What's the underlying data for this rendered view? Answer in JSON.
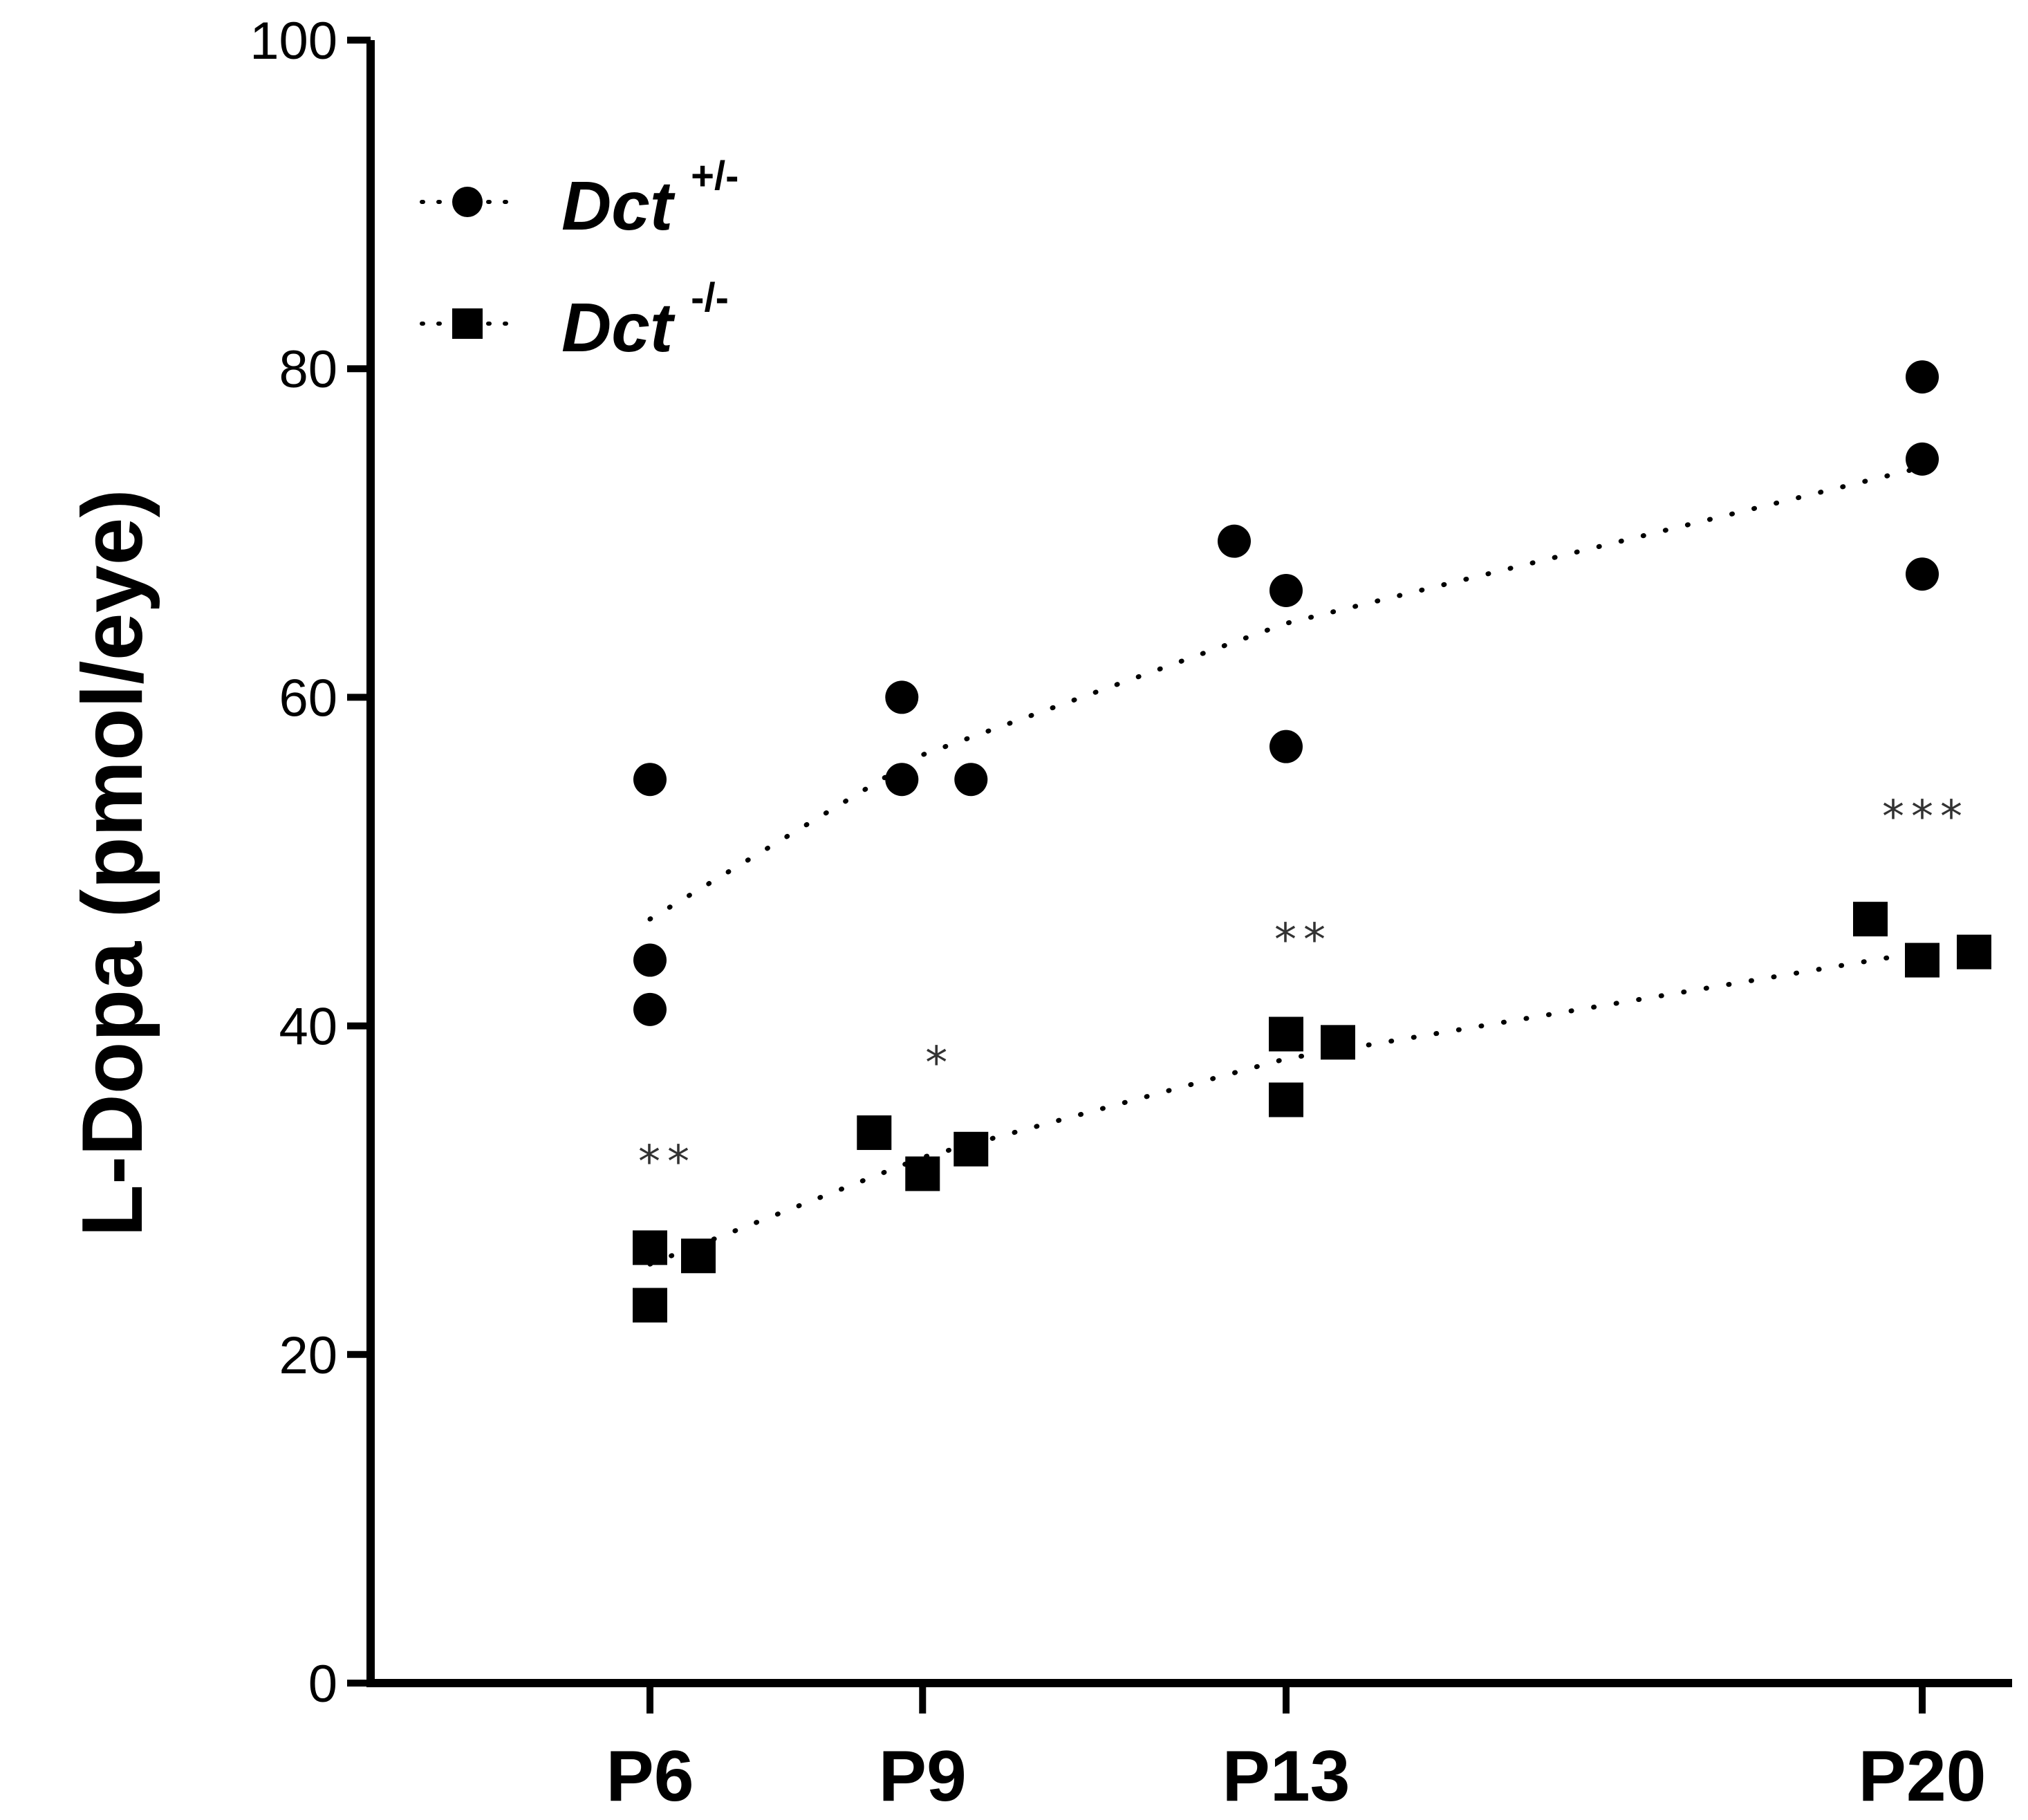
{
  "chart_data": {
    "type": "scatter",
    "ylabel": "L-Dopa (pmol/eye)",
    "xlabel": "",
    "ylim": [
      0,
      100
    ],
    "yticks": [
      0,
      20,
      40,
      60,
      80,
      100
    ],
    "categories": [
      "P6",
      "P9",
      "P13",
      "P20"
    ],
    "x_positions": [
      6,
      9,
      13,
      20
    ],
    "series": [
      {
        "name": "Dct",
        "genotype": "+/-",
        "marker": "circle",
        "points": [
          {
            "x": 6,
            "y": 55
          },
          {
            "x": 6,
            "y": 44
          },
          {
            "x": 6,
            "y": 41
          },
          {
            "x": 9,
            "y": 60
          },
          {
            "x": 9,
            "y": 55
          },
          {
            "x": 9,
            "y": 55
          },
          {
            "x": 13,
            "y": 69.5
          },
          {
            "x": 13,
            "y": 66.5
          },
          {
            "x": 13,
            "y": 57
          },
          {
            "x": 20,
            "y": 79.5
          },
          {
            "x": 20,
            "y": 74.5
          },
          {
            "x": 20,
            "y": 67.5
          }
        ],
        "trend": [
          {
            "x": 6,
            "y": 46.5
          },
          {
            "x": 9,
            "y": 56.5
          },
          {
            "x": 13,
            "y": 64.5
          },
          {
            "x": 20,
            "y": 74
          }
        ]
      },
      {
        "name": "Dct",
        "genotype": "-/-",
        "marker": "square",
        "points": [
          {
            "x": 6,
            "y": 26.5
          },
          {
            "x": 6,
            "y": 23
          },
          {
            "x": 6,
            "y": 26
          },
          {
            "x": 9,
            "y": 33.5
          },
          {
            "x": 9,
            "y": 31
          },
          {
            "x": 9,
            "y": 32.5
          },
          {
            "x": 13,
            "y": 39.5
          },
          {
            "x": 13,
            "y": 35.5
          },
          {
            "x": 13,
            "y": 39
          },
          {
            "x": 20,
            "y": 46.5
          },
          {
            "x": 20,
            "y": 44
          },
          {
            "x": 20,
            "y": 44.5
          }
        ],
        "trend": [
          {
            "x": 6,
            "y": 25.5
          },
          {
            "x": 9,
            "y": 32
          },
          {
            "x": 13,
            "y": 38
          },
          {
            "x": 20,
            "y": 44.5
          }
        ]
      }
    ],
    "annotations": [
      {
        "x": 6,
        "y": 32.5,
        "text": "**"
      },
      {
        "x": 9,
        "y": 38.5,
        "text": "*"
      },
      {
        "x": 13,
        "y": 46,
        "text": "**"
      },
      {
        "x": 20,
        "y": 53.5,
        "text": "***"
      }
    ],
    "legend_position": "top-left"
  }
}
